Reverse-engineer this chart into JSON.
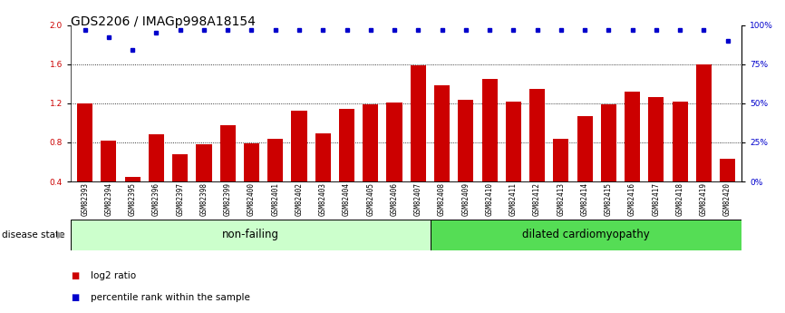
{
  "title": "GDS2206 / IMAGp998A18154",
  "samples": [
    "GSM82393",
    "GSM82394",
    "GSM82395",
    "GSM82396",
    "GSM82397",
    "GSM82398",
    "GSM82399",
    "GSM82400",
    "GSM82401",
    "GSM82402",
    "GSM82403",
    "GSM82404",
    "GSM82405",
    "GSM82406",
    "GSM82407",
    "GSM82408",
    "GSM82409",
    "GSM82410",
    "GSM82411",
    "GSM82412",
    "GSM82413",
    "GSM82414",
    "GSM82415",
    "GSM82416",
    "GSM82417",
    "GSM82418",
    "GSM82419",
    "GSM82420"
  ],
  "log2_ratio": [
    1.2,
    0.82,
    0.45,
    0.88,
    0.68,
    0.78,
    0.98,
    0.79,
    0.84,
    1.12,
    0.89,
    1.14,
    1.19,
    1.21,
    1.59,
    1.38,
    1.24,
    1.45,
    1.22,
    1.35,
    0.84,
    1.07,
    1.19,
    1.32,
    1.26,
    1.22,
    1.6,
    0.63
  ],
  "percentile_rank_values": [
    97,
    92,
    84,
    95,
    97,
    97,
    97,
    97,
    97,
    97,
    97,
    97,
    97,
    97,
    97,
    97,
    97,
    97,
    97,
    97,
    97,
    97,
    97,
    97,
    97,
    97,
    97,
    90
  ],
  "nonfailing_count": 15,
  "dilated_count": 13,
  "ylim_left": [
    0.4,
    2.0
  ],
  "ylim_right": [
    0,
    100
  ],
  "yticks_left": [
    0.4,
    0.8,
    1.2,
    1.6,
    2.0
  ],
  "yticks_right": [
    0,
    25,
    50,
    75,
    100
  ],
  "bar_color": "#cc0000",
  "dot_color": "#0000cc",
  "nonfailing_color": "#ccffcc",
  "dilated_color": "#55dd55",
  "group_label_nonfailing": "non-failing",
  "group_label_dilated": "dilated cardiomyopathy",
  "disease_state_label": "disease state",
  "legend_bar_label": "log2 ratio",
  "legend_dot_label": "percentile rank within the sample",
  "title_fontsize": 10,
  "tick_fontsize": 6.5,
  "group_fontsize": 8.5
}
